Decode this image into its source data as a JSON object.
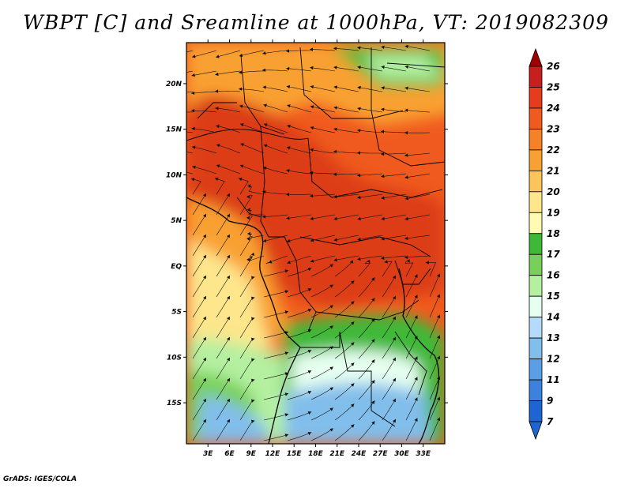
{
  "title": "WBPT [C] and Sreamline at 1000hPa, VT: 2019082309",
  "footer": "GrADS: IGES/COLA",
  "map": {
    "lon_range": [
      0,
      36
    ],
    "lat_range": [
      -19.5,
      24.5
    ],
    "lon_ticks": [
      3,
      6,
      9,
      12,
      15,
      18,
      21,
      24,
      27,
      30,
      33
    ],
    "lon_tick_labels": [
      "3E",
      "6E",
      "9E",
      "12E",
      "15E",
      "18E",
      "21E",
      "24E",
      "27E",
      "30E",
      "33E"
    ],
    "lat_ticks": [
      20,
      15,
      10,
      5,
      0,
      -5,
      -10,
      -15
    ],
    "lat_tick_labels": [
      "20N",
      "15N",
      "10N",
      "5N",
      "EQ",
      "5S",
      "10S",
      "15S"
    ]
  },
  "colorbar": {
    "levels": [
      "26",
      "25",
      "24",
      "23",
      "22",
      "21",
      "20",
      "19",
      "18",
      "17",
      "16",
      "15",
      "14",
      "13",
      "12",
      "11",
      "9",
      "7"
    ],
    "colors": [
      "#a00000",
      "#c81e1e",
      "#e63c1e",
      "#f05a1e",
      "#f58228",
      "#f9a032",
      "#fcc45a",
      "#fde68c",
      "#fffab4",
      "#3fb838",
      "#78d05a",
      "#b4f0a0",
      "#e6fff0",
      "#b4dcfa",
      "#82beeb",
      "#5a9ee6",
      "#3c82dc",
      "#1e64d2"
    ]
  },
  "field_colors": {
    "hot": "#dc3c14",
    "warm": "#f05a1e",
    "orange": "#f9a032",
    "yellow": "#fde68c",
    "green": "#3fb838",
    "light_green": "#b4f0a0",
    "pale": "#e6fff0",
    "blue": "#82beeb"
  }
}
